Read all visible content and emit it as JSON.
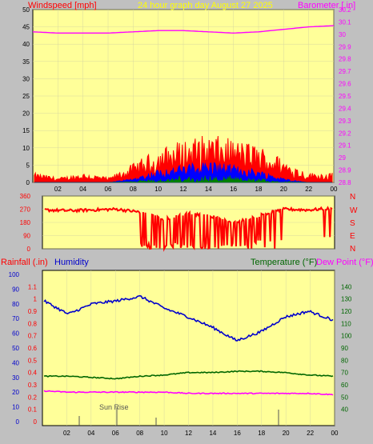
{
  "colors": {
    "background": "#c0c0c0",
    "plot": "#ffff99",
    "wind": "#ff0000",
    "gust_avg": "#0000ff",
    "wind_low": "#008000",
    "barometer": "#ff00ff",
    "humidity": "#0000cc",
    "temperature": "#006600",
    "dewpoint": "#ff00ff",
    "title": "#ffff00",
    "axis_text": "#000000"
  },
  "header": {
    "windspeed_label": "Windspeed [mph]",
    "title": "24 hour graph day   August 27 2025",
    "barometer_label": "Barometer [.in]"
  },
  "hours": [
    "02",
    "04",
    "06",
    "08",
    "10",
    "12",
    "14",
    "16",
    "18",
    "20",
    "22",
    "00"
  ],
  "chart_data": [
    {
      "type": "line",
      "title": "24 hour graph day   August 27 2025",
      "ylabel": "Windspeed [mph]",
      "y2label": "Barometer [.in]",
      "ylim": [
        0,
        50
      ],
      "y2lim": [
        28.8,
        30.2
      ],
      "yticks": [
        0,
        5,
        10,
        15,
        20,
        25,
        30,
        35,
        40,
        45,
        50
      ],
      "y2ticks": [
        "28.8",
        "28.9",
        "29",
        "29.1",
        "29.2",
        "29.3",
        "29.4",
        "29.5",
        "29.6",
        "29.7",
        "29.8",
        "29.9",
        "30",
        "30.1",
        "30.2"
      ],
      "x": [
        "00",
        "02",
        "04",
        "06",
        "08",
        "10",
        "12",
        "14",
        "16",
        "18",
        "20",
        "22",
        "00"
      ],
      "series": [
        {
          "name": "Barometer",
          "axis": "right",
          "values": [
            30.02,
            30.01,
            30.01,
            30.01,
            30.02,
            30.03,
            30.03,
            30.02,
            30.01,
            30.02,
            30.04,
            30.06,
            30.07
          ]
        },
        {
          "name": "Wind gust",
          "axis": "left",
          "values": [
            2,
            1,
            2,
            1,
            4,
            7,
            9,
            10,
            9,
            8,
            5,
            2,
            2
          ]
        },
        {
          "name": "Wind average",
          "axis": "left",
          "values": [
            0,
            0,
            0,
            0,
            1,
            3,
            4,
            5,
            4,
            3,
            1,
            0,
            0
          ]
        }
      ]
    },
    {
      "type": "line",
      "ylabel": "Wind direction",
      "ylim": [
        0,
        360
      ],
      "yticks": [
        0,
        90,
        180,
        270,
        360
      ],
      "right_labels": [
        "N",
        "W",
        "S",
        "E",
        "N"
      ],
      "x": [
        "00",
        "02",
        "04",
        "06",
        "08",
        "10",
        "12",
        "14",
        "16",
        "18",
        "20",
        "22",
        "00"
      ],
      "series": [
        {
          "name": "Direction",
          "values": [
            265,
            260,
            265,
            270,
            250,
            200,
            240,
            220,
            180,
            230,
            270,
            265,
            275
          ]
        }
      ]
    },
    {
      "type": "line",
      "ylabel": "Rainfall (.in)",
      "ylabel2": "Humidity",
      "y2label": "Temperature (°F)",
      "y2label2": "Dew Point (°F)",
      "ylim_humidity": [
        0,
        100
      ],
      "ylim_rain": [
        0,
        1.2
      ],
      "y2lim": [
        30,
        150
      ],
      "humidity_ticks": [
        0,
        10,
        20,
        30,
        40,
        50,
        60,
        70,
        80,
        90,
        100
      ],
      "rain_ticks": [
        "0",
        "0.1",
        "0.2",
        "0.3",
        "0.4",
        "0.5",
        "0.6",
        "0.7",
        "0.8",
        "0.9",
        "1",
        "1.1"
      ],
      "temp_ticks": [
        40,
        50,
        60,
        70,
        80,
        90,
        100,
        110,
        120,
        130,
        140
      ],
      "annotation": "Sun Rise",
      "x": [
        "00",
        "02",
        "04",
        "06",
        "08",
        "10",
        "12",
        "14",
        "16",
        "18",
        "20",
        "22",
        "00"
      ],
      "series": [
        {
          "name": "Humidity",
          "values": [
            82,
            73,
            80,
            82,
            85,
            77,
            71,
            64,
            55,
            61,
            71,
            75,
            69
          ]
        },
        {
          "name": "Temperature",
          "values": [
            67,
            67,
            66,
            65,
            67,
            68,
            70,
            70,
            71,
            71,
            70,
            68,
            67
          ]
        },
        {
          "name": "Dew Point",
          "values": [
            55,
            54,
            54,
            54,
            54,
            54,
            53,
            53,
            53,
            53,
            53,
            53,
            52
          ]
        }
      ]
    }
  ],
  "lower": {
    "rain_label": "Rainfall (.in)",
    "humidity_label": "Humidity",
    "temp_label": "Temperature (°F)",
    "dew_label": "Dew Point (°F)",
    "sunrise_label": "Sun Rise"
  }
}
